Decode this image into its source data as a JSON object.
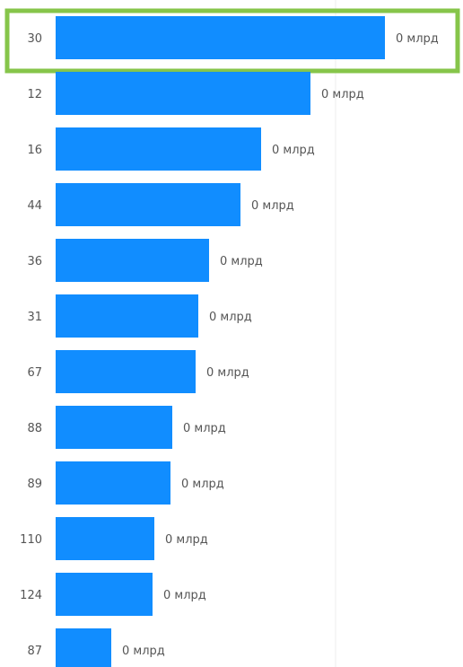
{
  "chart_data": {
    "type": "bar",
    "orientation": "horizontal",
    "categories": [
      "30",
      "12",
      "16",
      "44",
      "36",
      "31",
      "67",
      "88",
      "89",
      "110",
      "124",
      "87"
    ],
    "values": [
      367,
      284,
      229,
      206,
      171,
      159,
      156,
      130,
      128,
      110,
      108,
      62
    ],
    "data_labels": [
      "0 млрд",
      "0 млрд",
      "0 млрд",
      "0 млрд",
      "0 млрд",
      "0 млрд",
      "0 млрд",
      "0 млрд",
      "0 млрд",
      "0 млрд",
      "0 млрд",
      "0 млрд"
    ],
    "highlighted_category": "30",
    "title": "",
    "xlabel": "",
    "ylabel": "",
    "grid": false,
    "legend": "none"
  },
  "colors": {
    "bar": "#118DFF",
    "highlight": "#86C54A",
    "text": "#555555",
    "gridline": "#EDEDED"
  }
}
